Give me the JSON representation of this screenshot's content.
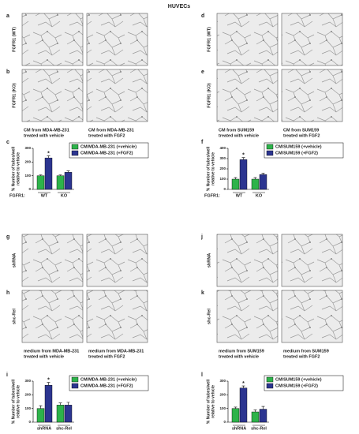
{
  "title": "HUVECs",
  "blocks": [
    {
      "panels": [
        {
          "letter": "a",
          "row_label": "FGFR1 (WT)"
        },
        {
          "letter": "b",
          "row_label": "FGFR1 (KO)"
        }
      ],
      "captions": [
        [
          "CM from MDA-MB-231",
          "treated with vehicle"
        ],
        [
          "CM from MDA-MB-231",
          "treated with FGF2"
        ]
      ]
    },
    {
      "panels": [
        {
          "letter": "d",
          "row_label": "FGFR1 (WT)"
        },
        {
          "letter": "e",
          "row_label": "FGFR1 (KO)"
        }
      ],
      "captions": [
        [
          "CM from SUM159",
          "treated with vehicle"
        ],
        [
          "CM from SUM159",
          "treated with FGF2"
        ]
      ]
    },
    {
      "panels": [
        {
          "letter": "g",
          "row_label": "shRNA"
        },
        {
          "letter": "h",
          "row_label": "shc-Rel"
        }
      ],
      "captions": [
        [
          "medium  from MDA-MB-231",
          "treated with vehicle"
        ],
        [
          "medium from MDA-MB-231",
          "treated with FGF2"
        ]
      ]
    },
    {
      "panels": [
        {
          "letter": "j",
          "row_label": "shRNA"
        },
        {
          "letter": "k",
          "row_label": "shc-Rel"
        }
      ],
      "captions": [
        [
          "medium  from SUM159",
          "treated with vehicle"
        ],
        [
          "medium from SUM159",
          "treated with FGF2"
        ]
      ]
    }
  ],
  "chart_data": [
    {
      "type": "bar",
      "panel": "c",
      "ylabel": [
        "% Number of tubes/well",
        "relative to vehicle"
      ],
      "category_label": "FGFR1:",
      "categories": [
        "WT",
        "KO"
      ],
      "ylim": [
        0,
        300
      ],
      "yticks": [
        0,
        100,
        200,
        300
      ],
      "series": [
        {
          "name": "CM/MDA-MB-231 (+vehicle)",
          "color": "#2db34a",
          "values": [
            100,
            100
          ],
          "errors": [
            6,
            6
          ]
        },
        {
          "name": "CM/MDA-MB-231 (+FGF2)",
          "color": "#2c3590",
          "values": [
            230,
            125
          ],
          "errors": [
            15,
            10
          ],
          "markers": [
            "*",
            null
          ]
        }
      ]
    },
    {
      "type": "bar",
      "panel": "f",
      "ylabel": [
        "% Number of tubes/well",
        "relative to vehicle"
      ],
      "category_label": "FGFR1:",
      "categories": [
        "WT",
        "KO"
      ],
      "ylim": [
        0,
        400
      ],
      "yticks": [
        0,
        100,
        200,
        300,
        400
      ],
      "series": [
        {
          "name": "CM/SUM159 (+vehicle)",
          "color": "#2db34a",
          "values": [
            100,
            100
          ],
          "errors": [
            15,
            15
          ]
        },
        {
          "name": "CM/SUM159 (+FGF2)",
          "color": "#2c3590",
          "values": [
            290,
            145
          ],
          "errors": [
            20,
            12
          ],
          "markers": [
            "*",
            null
          ]
        }
      ]
    },
    {
      "type": "bar",
      "panel": "i",
      "ylabel": [
        "% Number of tubes/well",
        "relative to vehicle"
      ],
      "categories": [
        "shRNA",
        "shc-Rel"
      ],
      "ylim": [
        0,
        300
      ],
      "yticks": [
        0,
        100,
        200,
        300
      ],
      "series": [
        {
          "name": "CM/MDA-MB-231 (+vehicle)",
          "color": "#2db34a",
          "values": [
            100,
            125
          ],
          "errors": [
            20,
            15
          ]
        },
        {
          "name": "CM/MDA-MB-231 (+FGF2)",
          "color": "#2c3590",
          "values": [
            270,
            125
          ],
          "errors": [
            20,
            20
          ],
          "markers": [
            "*",
            null
          ]
        }
      ]
    },
    {
      "type": "bar",
      "panel": "l",
      "ylabel": [
        "% Number of tubes/well",
        "relative to vehicle"
      ],
      "categories": [
        "shRNA",
        "shc-Rel"
      ],
      "ylim": [
        0,
        300
      ],
      "yticks": [
        0,
        100,
        200,
        300
      ],
      "series": [
        {
          "name": "CM/SUM159 (+vehicle)",
          "color": "#2db34a",
          "values": [
            100,
            75
          ],
          "errors": [
            10,
            15
          ]
        },
        {
          "name": "CM/SUM159 (+FGF2)",
          "color": "#2c3590",
          "values": [
            250,
            95
          ],
          "errors": [
            15,
            20
          ],
          "markers": [
            "*",
            null
          ]
        }
      ]
    }
  ]
}
